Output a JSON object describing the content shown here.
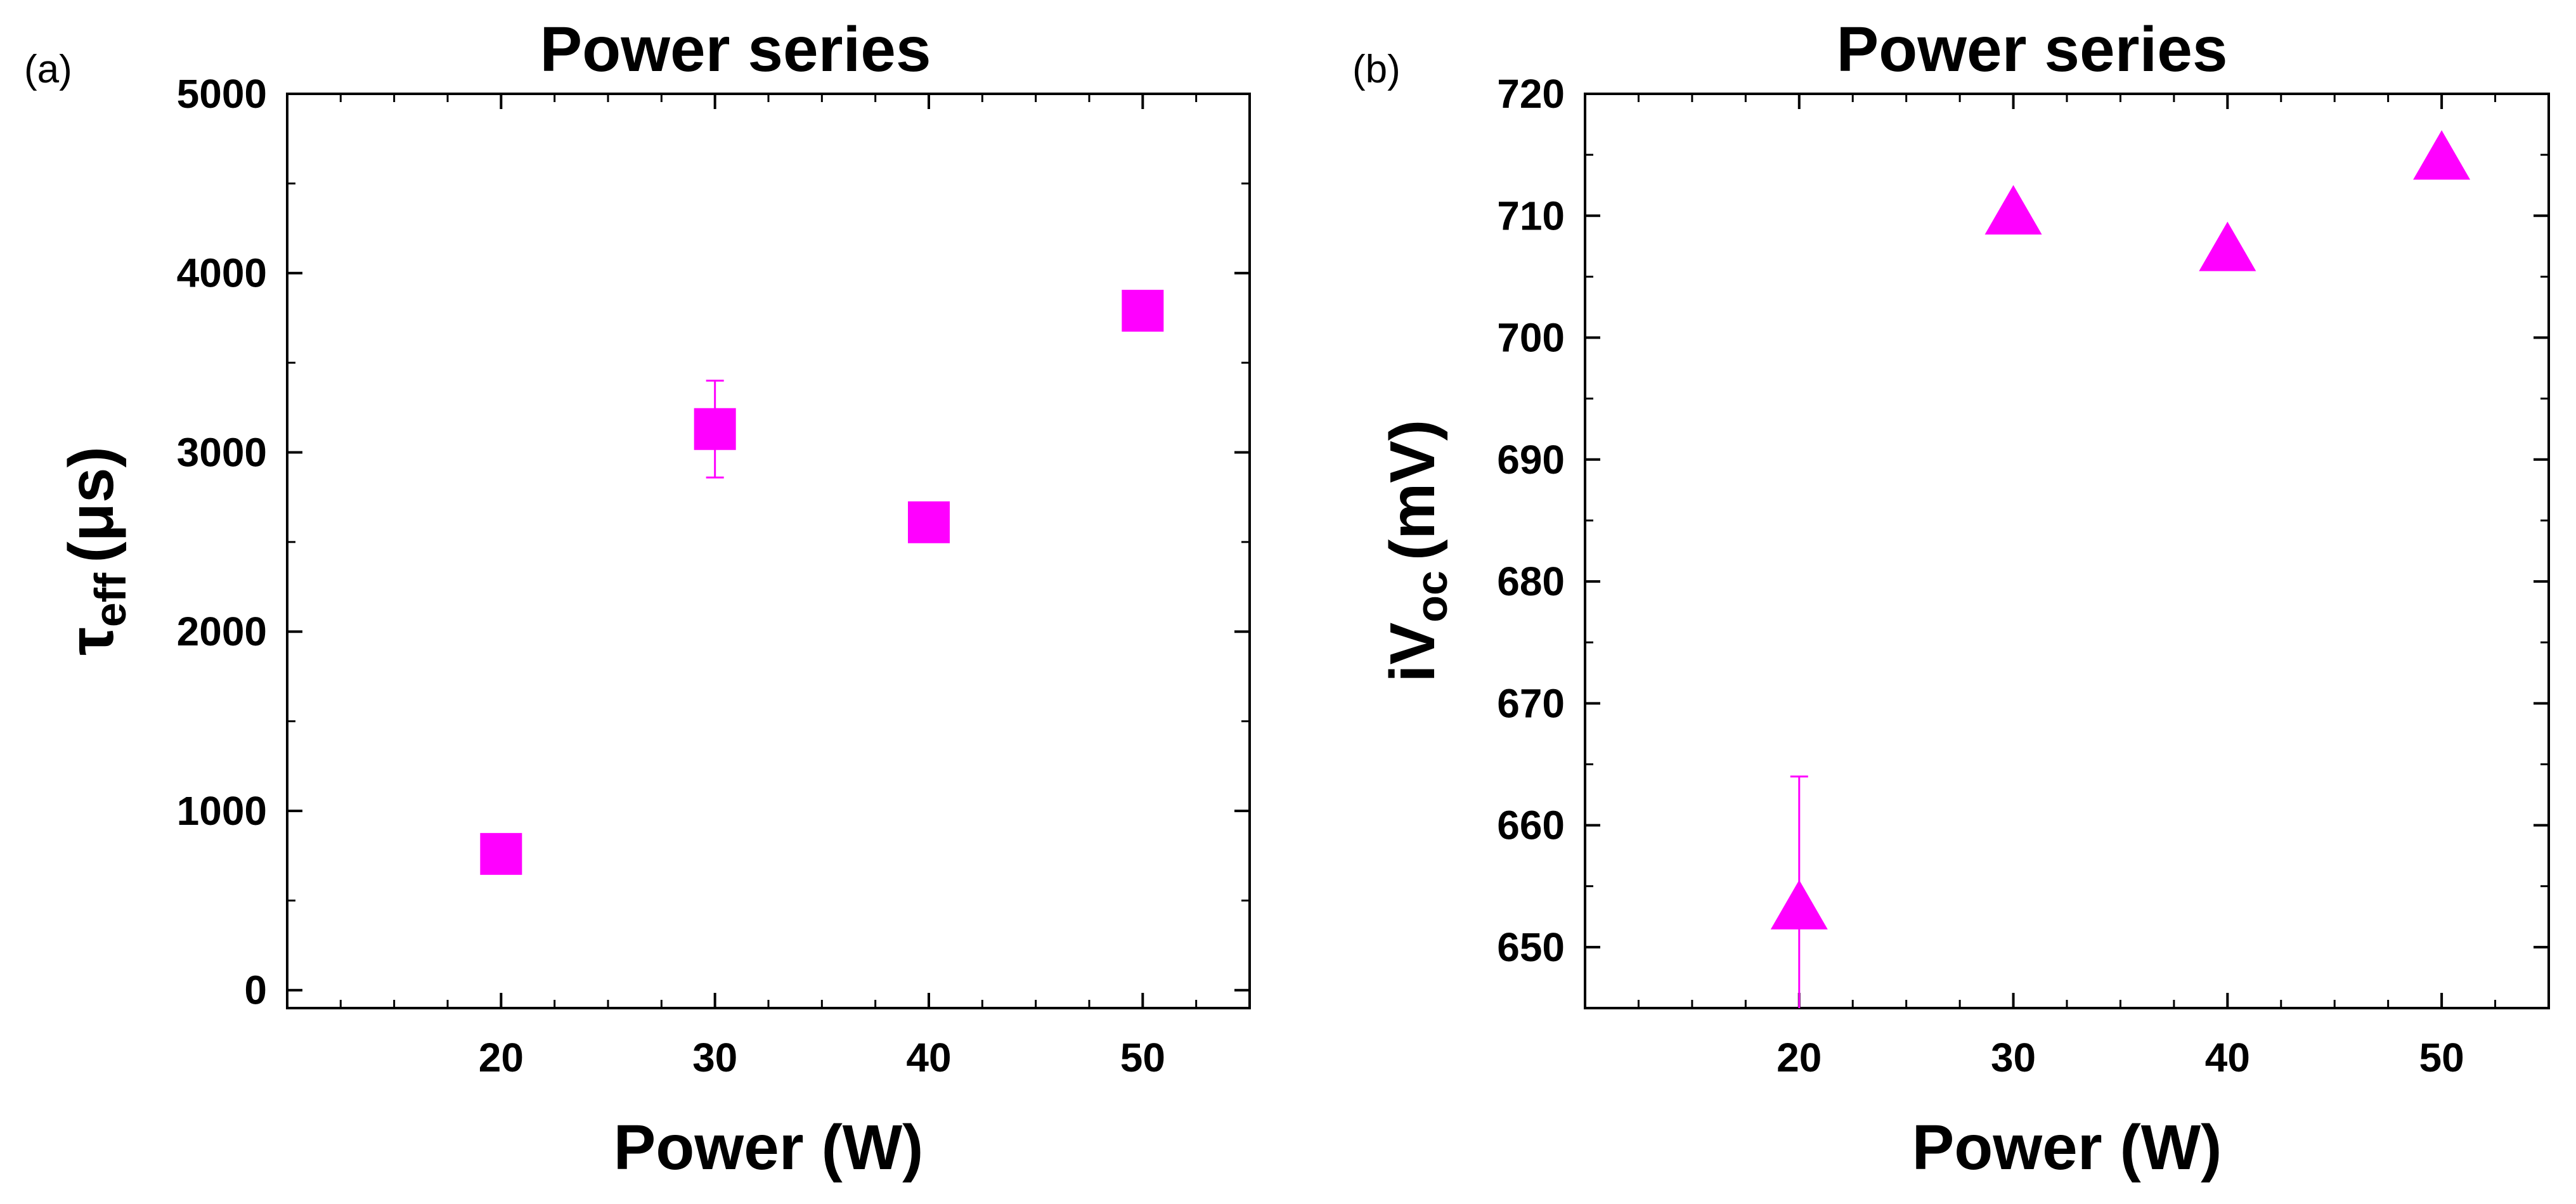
{
  "chart_data": [
    {
      "type": "scatter",
      "panel_label": "(a)",
      "title": "Power series",
      "xlabel": "Power (W)",
      "ylabel": {
        "symbol": "τ",
        "subscript": "eff",
        "unit": "(μs)"
      },
      "xlim": [
        10,
        55
      ],
      "ylim": [
        -100,
        5000
      ],
      "xticks": [
        20,
        30,
        40,
        50
      ],
      "yticks": [
        0,
        1000,
        2000,
        3000,
        4000,
        5000
      ],
      "x_minor_step": 2.5,
      "y_minor_step": 500,
      "marker": "square",
      "color": "#ff00ff",
      "series": [
        {
          "name": "Power series",
          "x": [
            20,
            30,
            40,
            50
          ],
          "y": [
            760,
            3130,
            2610,
            3790
          ],
          "yerr": [
            0,
            270,
            0,
            0
          ]
        }
      ]
    },
    {
      "type": "scatter",
      "panel_label": "(b)",
      "title": "Power series",
      "xlabel": "Power (W)",
      "ylabel": {
        "prefix": "iV",
        "subscript": "oc",
        "unit": "(mV)"
      },
      "xlim": [
        10,
        55
      ],
      "ylim": [
        645,
        720
      ],
      "xticks": [
        20,
        30,
        40,
        50
      ],
      "yticks": [
        650,
        660,
        670,
        680,
        690,
        700,
        710,
        720
      ],
      "x_minor_step": 2.5,
      "y_minor_step": 5,
      "marker": "triangle",
      "color": "#ff00ff",
      "series": [
        {
          "name": "Power series",
          "x": [
            20,
            30,
            40,
            50
          ],
          "y": [
            653,
            710,
            707,
            714.5
          ],
          "yerr": [
            11,
            0,
            0,
            0
          ]
        }
      ]
    }
  ]
}
